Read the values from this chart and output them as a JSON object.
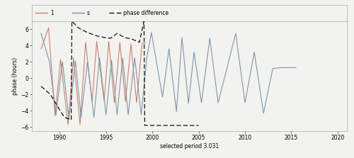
{
  "xlabel": "selected period 3.031",
  "ylabel": "phase (hours)",
  "xlim": [
    1987,
    2021
  ],
  "ylim": [
    -6.5,
    7.0
  ],
  "yticks": [
    -6,
    -4,
    -2,
    0,
    2,
    4,
    6
  ],
  "xticks": [
    1990,
    1995,
    2000,
    2005,
    2010,
    2015,
    2020
  ],
  "legend_labels": [
    "1",
    "s",
    "phase difference"
  ],
  "series1_color": "#c87c6a",
  "series2_color": "#7a8faa",
  "phase_diff_color": "#111111",
  "background_color": "#f2f2ee",
  "legend_bg": "#f2f2ee",
  "s1_x": [
    1988.0,
    1988.8,
    1989.5,
    1990.1,
    1990.9,
    1991.5,
    1992.2,
    1992.8,
    1993.5,
    1994.0,
    1994.8,
    1995.3,
    1995.9,
    1996.5,
    1997.1,
    1997.7,
    1998.3,
    1998.9,
    1999.3
  ],
  "s1_y": [
    3.6,
    6.2,
    -4.6,
    2.3,
    -5.7,
    2.5,
    -5.7,
    4.4,
    -2.9,
    4.5,
    -2.8,
    4.5,
    -3.0,
    4.4,
    -2.9,
    4.2,
    -3.0,
    4.3,
    4.3
  ],
  "s2_x": [
    1988.0,
    1988.9,
    1989.6,
    1990.3,
    1991.0,
    1991.7,
    1992.3,
    1993.0,
    1993.7,
    1994.3,
    1995.0,
    1995.6,
    1996.2,
    1996.8,
    1997.4,
    1998.1,
    1998.8,
    1999.4,
    1999.9,
    2001.1,
    2001.8,
    2002.6,
    2003.2,
    2003.9,
    2004.5,
    2005.3,
    2006.2,
    2007.1,
    2008.0,
    2009.0,
    2010.0,
    2011.0,
    2012.0,
    2013.0,
    2014.0,
    2015.5
  ],
  "s2_y": [
    5.5,
    2.0,
    -4.5,
    2.0,
    -5.0,
    2.1,
    -4.8,
    2.0,
    -4.8,
    2.5,
    -4.5,
    2.2,
    -4.5,
    2.5,
    -4.5,
    2.5,
    -4.5,
    2.5,
    5.6,
    -2.3,
    3.6,
    -4.1,
    5.0,
    -3.1,
    3.2,
    -3.0,
    4.9,
    -3.0,
    1.0,
    5.5,
    -3.0,
    3.2,
    -4.3,
    1.2,
    1.3,
    1.3
  ],
  "pd_x": [
    1988.0,
    1989.0,
    1989.8,
    1990.5,
    1991.25,
    1991.32,
    1992.0,
    1993.0,
    1994.0,
    1994.8,
    1995.5,
    1996.2,
    1997.0,
    1997.8,
    1998.6,
    1999.1,
    1999.18,
    2001.0,
    2002.0,
    2003.0,
    2004.0,
    2005.0
  ],
  "pd_y": [
    -1.0,
    -2.0,
    -3.5,
    -4.8,
    -5.1,
    7.0,
    6.2,
    5.6,
    5.2,
    5.0,
    4.9,
    5.5,
    5.0,
    4.8,
    4.4,
    7.0,
    -5.8,
    -5.8,
    -5.8,
    -5.8,
    -5.8,
    -5.8
  ]
}
